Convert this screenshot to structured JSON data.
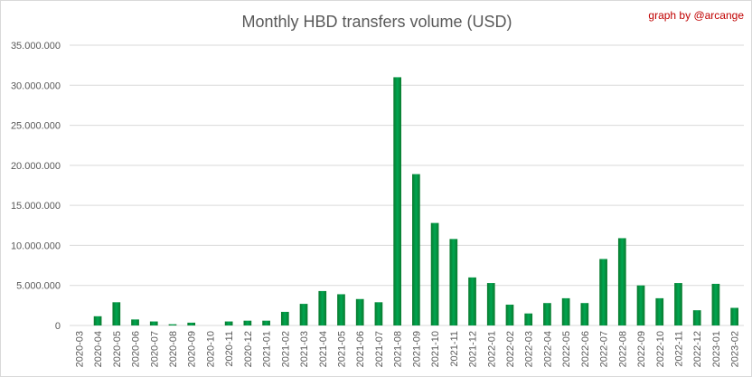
{
  "chart_data": {
    "type": "bar",
    "title": "Monthly HBD transfers volume (USD)",
    "credit": "graph by @arcange",
    "xlabel": "",
    "ylabel": "",
    "ylim": [
      0,
      35000000
    ],
    "yticks": [
      "0",
      "5.000.000",
      "10.000.000",
      "15.000.000",
      "20.000.000",
      "25.000.000",
      "30.000.000",
      "35.000.000"
    ],
    "grid": true,
    "bar_color": "#00a651",
    "categories": [
      "2020-03",
      "2020-04",
      "2020-05",
      "2020-06",
      "2020-07",
      "2020-08",
      "2020-09",
      "2020-10",
      "2020-11",
      "2020-12",
      "2021-01",
      "2021-02",
      "2021-03",
      "2021-04",
      "2021-05",
      "2021-06",
      "2021-07",
      "2021-08",
      "2021-09",
      "2021-10",
      "2021-11",
      "2021-12",
      "2022-01",
      "2022-02",
      "2022-03",
      "2022-04",
      "2022-05",
      "2022-06",
      "2022-07",
      "2022-08",
      "2022-09",
      "2022-10",
      "2022-11",
      "2022-12",
      "2023-01",
      "2023-02"
    ],
    "values": [
      0,
      1150000,
      2900000,
      750000,
      500000,
      150000,
      350000,
      0,
      500000,
      600000,
      600000,
      1700000,
      2700000,
      4300000,
      3900000,
      3300000,
      2900000,
      31000000,
      18900000,
      12800000,
      10800000,
      6000000,
      5300000,
      2600000,
      1500000,
      2800000,
      3400000,
      2800000,
      8300000,
      10900000,
      5000000,
      3400000,
      5300000,
      1900000,
      5200000,
      2200000
    ]
  }
}
